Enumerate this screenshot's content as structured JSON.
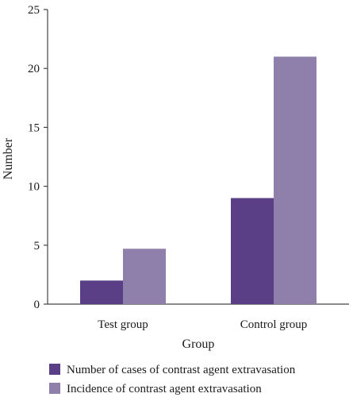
{
  "chart_data": {
    "type": "bar",
    "categories": [
      "Test group",
      "Control group"
    ],
    "series": [
      {
        "name": "Number of cases of contrast agent extravasation",
        "values": [
          2,
          9
        ],
        "color": "#5b3f86"
      },
      {
        "name": "Incidence of contrast agent extravasation",
        "values": [
          4.7,
          21
        ],
        "color": "#8e7fab"
      }
    ],
    "xlabel": "Group",
    "ylabel": "Number",
    "ylim": [
      0,
      25
    ],
    "yticks": [
      0,
      5,
      10,
      15,
      20,
      25
    ],
    "grid": false,
    "legend": "bottom"
  }
}
